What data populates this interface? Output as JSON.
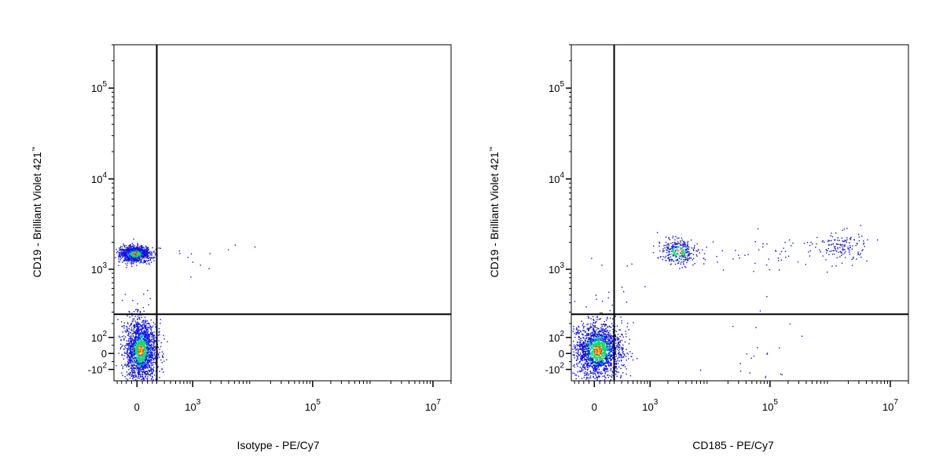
{
  "chart_data": [
    {
      "type": "scatter",
      "xlabel": "Isotype - PE/Cy7",
      "ylabel": "CD19 - Brilliant Violet 421",
      "ylabel_tm": "™",
      "x_ticks": [
        {
          "value": 0,
          "base": "0",
          "exp": ""
        },
        {
          "value": 1000,
          "base": "10",
          "exp": "3"
        },
        {
          "value": 100000,
          "base": "10",
          "exp": "5"
        },
        {
          "value": 10000000,
          "base": "10",
          "exp": "7"
        }
      ],
      "y_ticks": [
        {
          "value": -100,
          "base": "-10",
          "exp": "2"
        },
        {
          "value": 0,
          "base": "0",
          "exp": ""
        },
        {
          "value": 100,
          "base": "10",
          "exp": "2"
        },
        {
          "value": 1000,
          "base": "10",
          "exp": "3"
        },
        {
          "value": 10000,
          "base": "10",
          "exp": "4"
        },
        {
          "value": 100000,
          "base": "10",
          "exp": "5"
        }
      ],
      "xlim": [
        -240,
        20000000
      ],
      "ylim": [
        -180,
        300000
      ],
      "x_scale": "biexponential",
      "y_scale": "biexponential",
      "gate_x": 200,
      "gate_y": 280,
      "grid": false,
      "series": [
        {
          "clusters": [
            {
              "x": -20,
              "y": 1500,
              "count": 1000,
              "sx": 0.3,
              "sy": 0.1
            },
            {
              "x": 30,
              "y": 20,
              "count": 1900,
              "sx": 0.3,
              "sy": 0.4
            },
            {
              "x": 1400,
              "y": 1500,
              "count": 12,
              "sx": 0.9,
              "sy": 0.35
            }
          ]
        }
      ]
    },
    {
      "type": "scatter",
      "xlabel": "CD185 - PE/Cy7",
      "ylabel": "CD19 - Brilliant Violet 421",
      "ylabel_tm": "™",
      "x_ticks": [
        {
          "value": 0,
          "base": "0",
          "exp": ""
        },
        {
          "value": 1000,
          "base": "10",
          "exp": "3"
        },
        {
          "value": 100000,
          "base": "10",
          "exp": "5"
        },
        {
          "value": 10000000,
          "base": "10",
          "exp": "7"
        }
      ],
      "y_ticks": [
        {
          "value": -100,
          "base": "-10",
          "exp": "2"
        },
        {
          "value": 0,
          "base": "0",
          "exp": ""
        },
        {
          "value": 100,
          "base": "10",
          "exp": "2"
        },
        {
          "value": 1000,
          "base": "10",
          "exp": "3"
        },
        {
          "value": 10000,
          "base": "10",
          "exp": "4"
        },
        {
          "value": 100000,
          "base": "10",
          "exp": "5"
        }
      ],
      "xlim": [
        -240,
        20000000
      ],
      "ylim": [
        -180,
        300000
      ],
      "x_scale": "biexponential",
      "y_scale": "biexponential",
      "gate_x": 200,
      "gate_y": 280,
      "grid": false,
      "series": [
        {
          "clusters": [
            {
              "x": 30,
              "y": 20,
              "count": 1900,
              "sx": 0.45,
              "sy": 0.35
            },
            {
              "x": 3000,
              "y": 1600,
              "count": 330,
              "sx": 0.35,
              "sy": 0.15
            },
            {
              "x": 1500000,
              "y": 1800,
              "count": 140,
              "sx": 0.5,
              "sy": 0.2
            },
            {
              "x": 100000,
              "y": 1500,
              "count": 50,
              "sx": 1.2,
              "sy": 0.25
            },
            {
              "x": 100000,
              "y": 5,
              "count": 25,
              "sx": 1.0,
              "sy": 0.6
            },
            {
              "x": 150,
              "y": 900,
              "count": 12,
              "sx": 0.6,
              "sy": 0.5
            }
          ]
        }
      ]
    }
  ]
}
